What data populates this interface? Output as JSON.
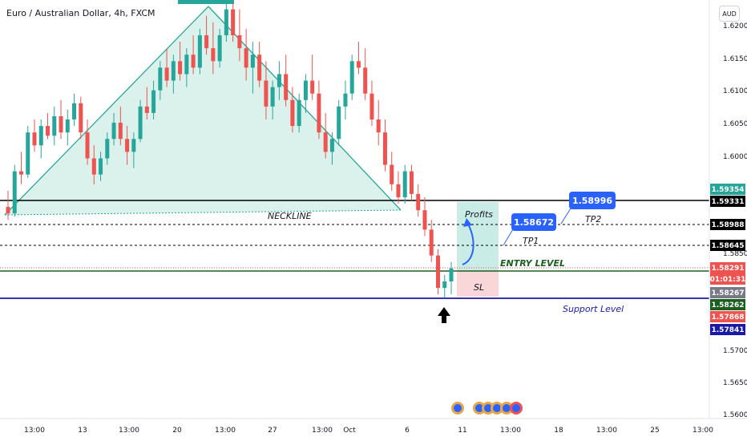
{
  "header": {
    "title": "Euro / Australian Dollar, 4h, FXCM",
    "currency": "AUD"
  },
  "colors": {
    "up": "#26a69a",
    "down": "#ef5350",
    "blue": "#2962ff",
    "dark_blue": "#1a1aa6",
    "green_line": "#1b5e20"
  },
  "annotations": {
    "neckline": "NECKLINE",
    "profits": "Profits",
    "sl": "SL",
    "entry_level": "ENTRY LEVEL",
    "tp1": "TP1",
    "tp2": "TP2",
    "support_level": "Support Level",
    "tp1_value": "1.58672",
    "tp2_value": "1.58996",
    "entry_arrow": "up-arrow-icon"
  },
  "price_tags": [
    {
      "label": "1.59354",
      "bg": "#26a69a"
    },
    {
      "label": "1.59331",
      "bg": "#000000"
    },
    {
      "label": "1.58988",
      "bg": "#000000"
    },
    {
      "label": "1.58645",
      "bg": "#000000"
    },
    {
      "label": "1.58291",
      "bg": "#ef5350"
    },
    {
      "label": "01:01:31",
      "bg": "#ef5350"
    },
    {
      "label": "1.58267",
      "bg": "#787b86"
    },
    {
      "label": "1.58262",
      "bg": "#1b5e20"
    },
    {
      "label": "1.57868",
      "bg": "#ef5350"
    },
    {
      "label": "1.57841",
      "bg": "#1a1aa6"
    }
  ],
  "chart_data": {
    "type": "candlestick",
    "title": "Euro / Australian Dollar, 4h, FXCM",
    "y_ticks": [
      "1.62000",
      "1.61500",
      "1.61000",
      "1.60500",
      "1.60000",
      "1.58500",
      "1.57000",
      "1.56500",
      "1.56000"
    ],
    "ylim": [
      1.56,
      1.625
    ],
    "x_ticks": [
      "13:00",
      "13",
      "13:00",
      "20",
      "13:00",
      "27",
      "13:00",
      "Oct",
      "6",
      "11",
      "13:00",
      "18",
      "13:00",
      "25",
      "13:00"
    ],
    "levels": {
      "neckline": 1.5935,
      "tp2": 1.5899,
      "tp1": 1.5865,
      "entry": 1.5826,
      "support": 1.5784
    },
    "candles": [
      [
        1.5925,
        1.595,
        1.5905,
        1.5915
      ],
      [
        1.5915,
        1.599,
        1.591,
        1.598
      ],
      [
        1.598,
        1.601,
        1.596,
        1.5975
      ],
      [
        1.5975,
        1.605,
        1.597,
        1.604
      ],
      [
        1.604,
        1.606,
        1.601,
        1.602
      ],
      [
        1.602,
        1.606,
        1.6,
        1.605
      ],
      [
        1.605,
        1.607,
        1.603,
        1.6035
      ],
      [
        1.6035,
        1.608,
        1.602,
        1.6065
      ],
      [
        1.6065,
        1.609,
        1.603,
        1.604
      ],
      [
        1.604,
        1.6075,
        1.602,
        1.606
      ],
      [
        1.606,
        1.61,
        1.605,
        1.6085
      ],
      [
        1.6085,
        1.6095,
        1.603,
        1.604
      ],
      [
        1.604,
        1.606,
        1.599,
        1.6
      ],
      [
        1.6,
        1.602,
        1.596,
        1.5975
      ],
      [
        1.5975,
        1.601,
        1.5965,
        1.6
      ],
      [
        1.6,
        1.604,
        1.599,
        1.603
      ],
      [
        1.603,
        1.607,
        1.602,
        1.6055
      ],
      [
        1.6055,
        1.608,
        1.602,
        1.603
      ],
      [
        1.603,
        1.605,
        1.599,
        1.601
      ],
      [
        1.601,
        1.604,
        1.5985,
        1.603
      ],
      [
        1.603,
        1.609,
        1.6025,
        1.608
      ],
      [
        1.608,
        1.611,
        1.606,
        1.607
      ],
      [
        1.607,
        1.612,
        1.606,
        1.6105
      ],
      [
        1.6105,
        1.615,
        1.609,
        1.614
      ],
      [
        1.614,
        1.617,
        1.611,
        1.612
      ],
      [
        1.612,
        1.616,
        1.61,
        1.615
      ],
      [
        1.615,
        1.618,
        1.612,
        1.613
      ],
      [
        1.613,
        1.617,
        1.611,
        1.616
      ],
      [
        1.616,
        1.619,
        1.613,
        1.614
      ],
      [
        1.614,
        1.62,
        1.613,
        1.619
      ],
      [
        1.619,
        1.622,
        1.616,
        1.617
      ],
      [
        1.617,
        1.621,
        1.613,
        1.615
      ],
      [
        1.615,
        1.62,
        1.614,
        1.619
      ],
      [
        1.619,
        1.624,
        1.618,
        1.623
      ],
      [
        1.623,
        1.624,
        1.618,
        1.619
      ],
      [
        1.619,
        1.623,
        1.615,
        1.617
      ],
      [
        1.617,
        1.62,
        1.612,
        1.614
      ],
      [
        1.614,
        1.618,
        1.61,
        1.616
      ],
      [
        1.616,
        1.618,
        1.611,
        1.612
      ],
      [
        1.612,
        1.615,
        1.606,
        1.608
      ],
      [
        1.608,
        1.612,
        1.606,
        1.611
      ],
      [
        1.611,
        1.615,
        1.609,
        1.613
      ],
      [
        1.613,
        1.616,
        1.608,
        1.609
      ],
      [
        1.609,
        1.611,
        1.604,
        1.605
      ],
      [
        1.605,
        1.61,
        1.604,
        1.609
      ],
      [
        1.609,
        1.613,
        1.607,
        1.612
      ],
      [
        1.612,
        1.616,
        1.609,
        1.61
      ],
      [
        1.61,
        1.612,
        1.603,
        1.604
      ],
      [
        1.604,
        1.607,
        1.6,
        1.601
      ],
      [
        1.601,
        1.604,
        1.599,
        1.603
      ],
      [
        1.603,
        1.609,
        1.602,
        1.608
      ],
      [
        1.608,
        1.612,
        1.606,
        1.61
      ],
      [
        1.61,
        1.616,
        1.609,
        1.615
      ],
      [
        1.615,
        1.618,
        1.613,
        1.614
      ],
      [
        1.614,
        1.617,
        1.609,
        1.61
      ],
      [
        1.61,
        1.612,
        1.605,
        1.606
      ],
      [
        1.606,
        1.609,
        1.602,
        1.604
      ],
      [
        1.604,
        1.606,
        1.598,
        1.599
      ],
      [
        1.599,
        1.601,
        1.595,
        1.596
      ],
      [
        1.596,
        1.598,
        1.593,
        1.594
      ],
      [
        1.594,
        1.599,
        1.593,
        1.598
      ],
      [
        1.598,
        1.599,
        1.5935,
        1.5945
      ],
      [
        1.5945,
        1.596,
        1.591,
        1.592
      ],
      [
        1.592,
        1.594,
        1.588,
        1.589
      ],
      [
        1.589,
        1.5905,
        1.584,
        1.585
      ],
      [
        1.585,
        1.586,
        1.579,
        1.58
      ],
      [
        1.58,
        1.582,
        1.5785,
        1.581
      ],
      [
        1.581,
        1.584,
        1.579,
        1.583
      ]
    ]
  }
}
